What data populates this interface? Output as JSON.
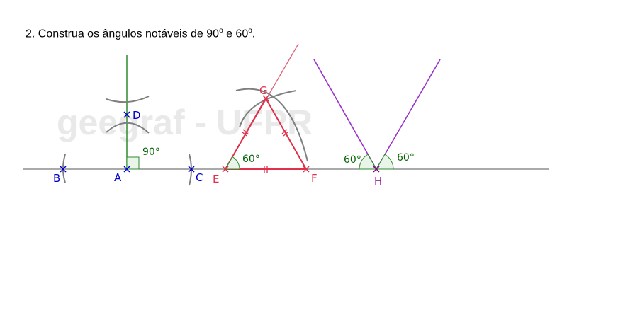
{
  "title": {
    "prefix": "2. Construa os ângulos notáveis de 90",
    "mid": " e 60",
    "suffix": ".",
    "degree_mark": "o"
  },
  "watermark": "geegraf - UFPR",
  "points": {
    "A": "A",
    "B": "B",
    "C": "C",
    "D": "D",
    "E": "E",
    "F": "F",
    "G": "G",
    "H": "H"
  },
  "angles": {
    "right_angle": "90°",
    "angle_e": "60°",
    "angle_h_left": "60°",
    "angle_h_right": "60°"
  },
  "colors": {
    "blue": "#0000cc",
    "green": "#006400",
    "red": "#e0304a",
    "purple": "#8b008b",
    "gray": "#7f7f7f"
  }
}
